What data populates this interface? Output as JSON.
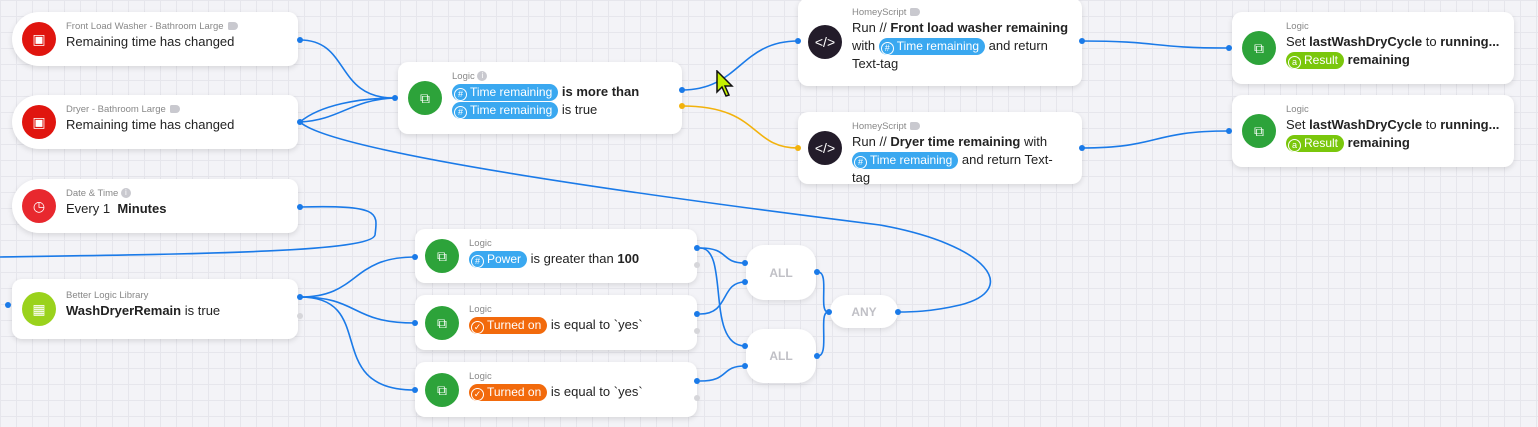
{
  "cards": {
    "washer_trigger": {
      "category": "Front Load Washer - Bathroom Large",
      "text": "Remaining time has changed",
      "icon": "washer-icon"
    },
    "dryer_trigger": {
      "category": "Dryer - Bathroom Large",
      "text": "Remaining time has changed",
      "icon": "dryer-icon"
    },
    "datetime_trigger": {
      "category": "Date & Time",
      "text_a": "Every 1",
      "text_b": "Minutes",
      "icon": "clock-icon"
    },
    "logic_compare": {
      "category": "Logic",
      "token1": "Time remaining",
      "text1": "is more than",
      "token2": "Time remaining",
      "text2": "is true"
    },
    "hs_washer": {
      "category": "HomeyScript",
      "pre": "Run //",
      "bold": "Front load washer remaining",
      "with": "with",
      "token": "Time remaining",
      "post": "and return",
      "post2": "Text-tag"
    },
    "hs_dryer": {
      "category": "HomeyScript",
      "pre": "Run //",
      "bold": "Dryer time remaining",
      "with": "with",
      "token": "Time remaining",
      "post": "and return Text-tag"
    },
    "set1": {
      "category": "Logic",
      "pre": "Set",
      "var": "lastWashDryCycle",
      "to": "to",
      "val": "running...",
      "token": "Result",
      "post": "remaining"
    },
    "set2": {
      "category": "Logic",
      "pre": "Set",
      "var": "lastWashDryCycle",
      "to": "to",
      "val": "running...",
      "token": "Result",
      "post": "remaining"
    },
    "bll": {
      "category": "Better Logic Library",
      "var": "WashDryerRemain",
      "text": "is true"
    },
    "power": {
      "category": "Logic",
      "token": "Power",
      "text": "is greater than",
      "val": "100"
    },
    "turned1": {
      "category": "Logic",
      "token": "Turned on",
      "text": "is equal to `yes`"
    },
    "turned2": {
      "category": "Logic",
      "token": "Turned on",
      "text": "is equal to `yes`"
    }
  },
  "gates": {
    "all1": "ALL",
    "all2": "ALL",
    "any": "ANY"
  },
  "colors": {
    "wire": "#1a7ae8",
    "else_wire": "#f2b20c",
    "logic": "#2da33a",
    "token_number": "#3aa8f0",
    "token_boolean": "#f26a0c",
    "token_text": "#7ac70c"
  }
}
